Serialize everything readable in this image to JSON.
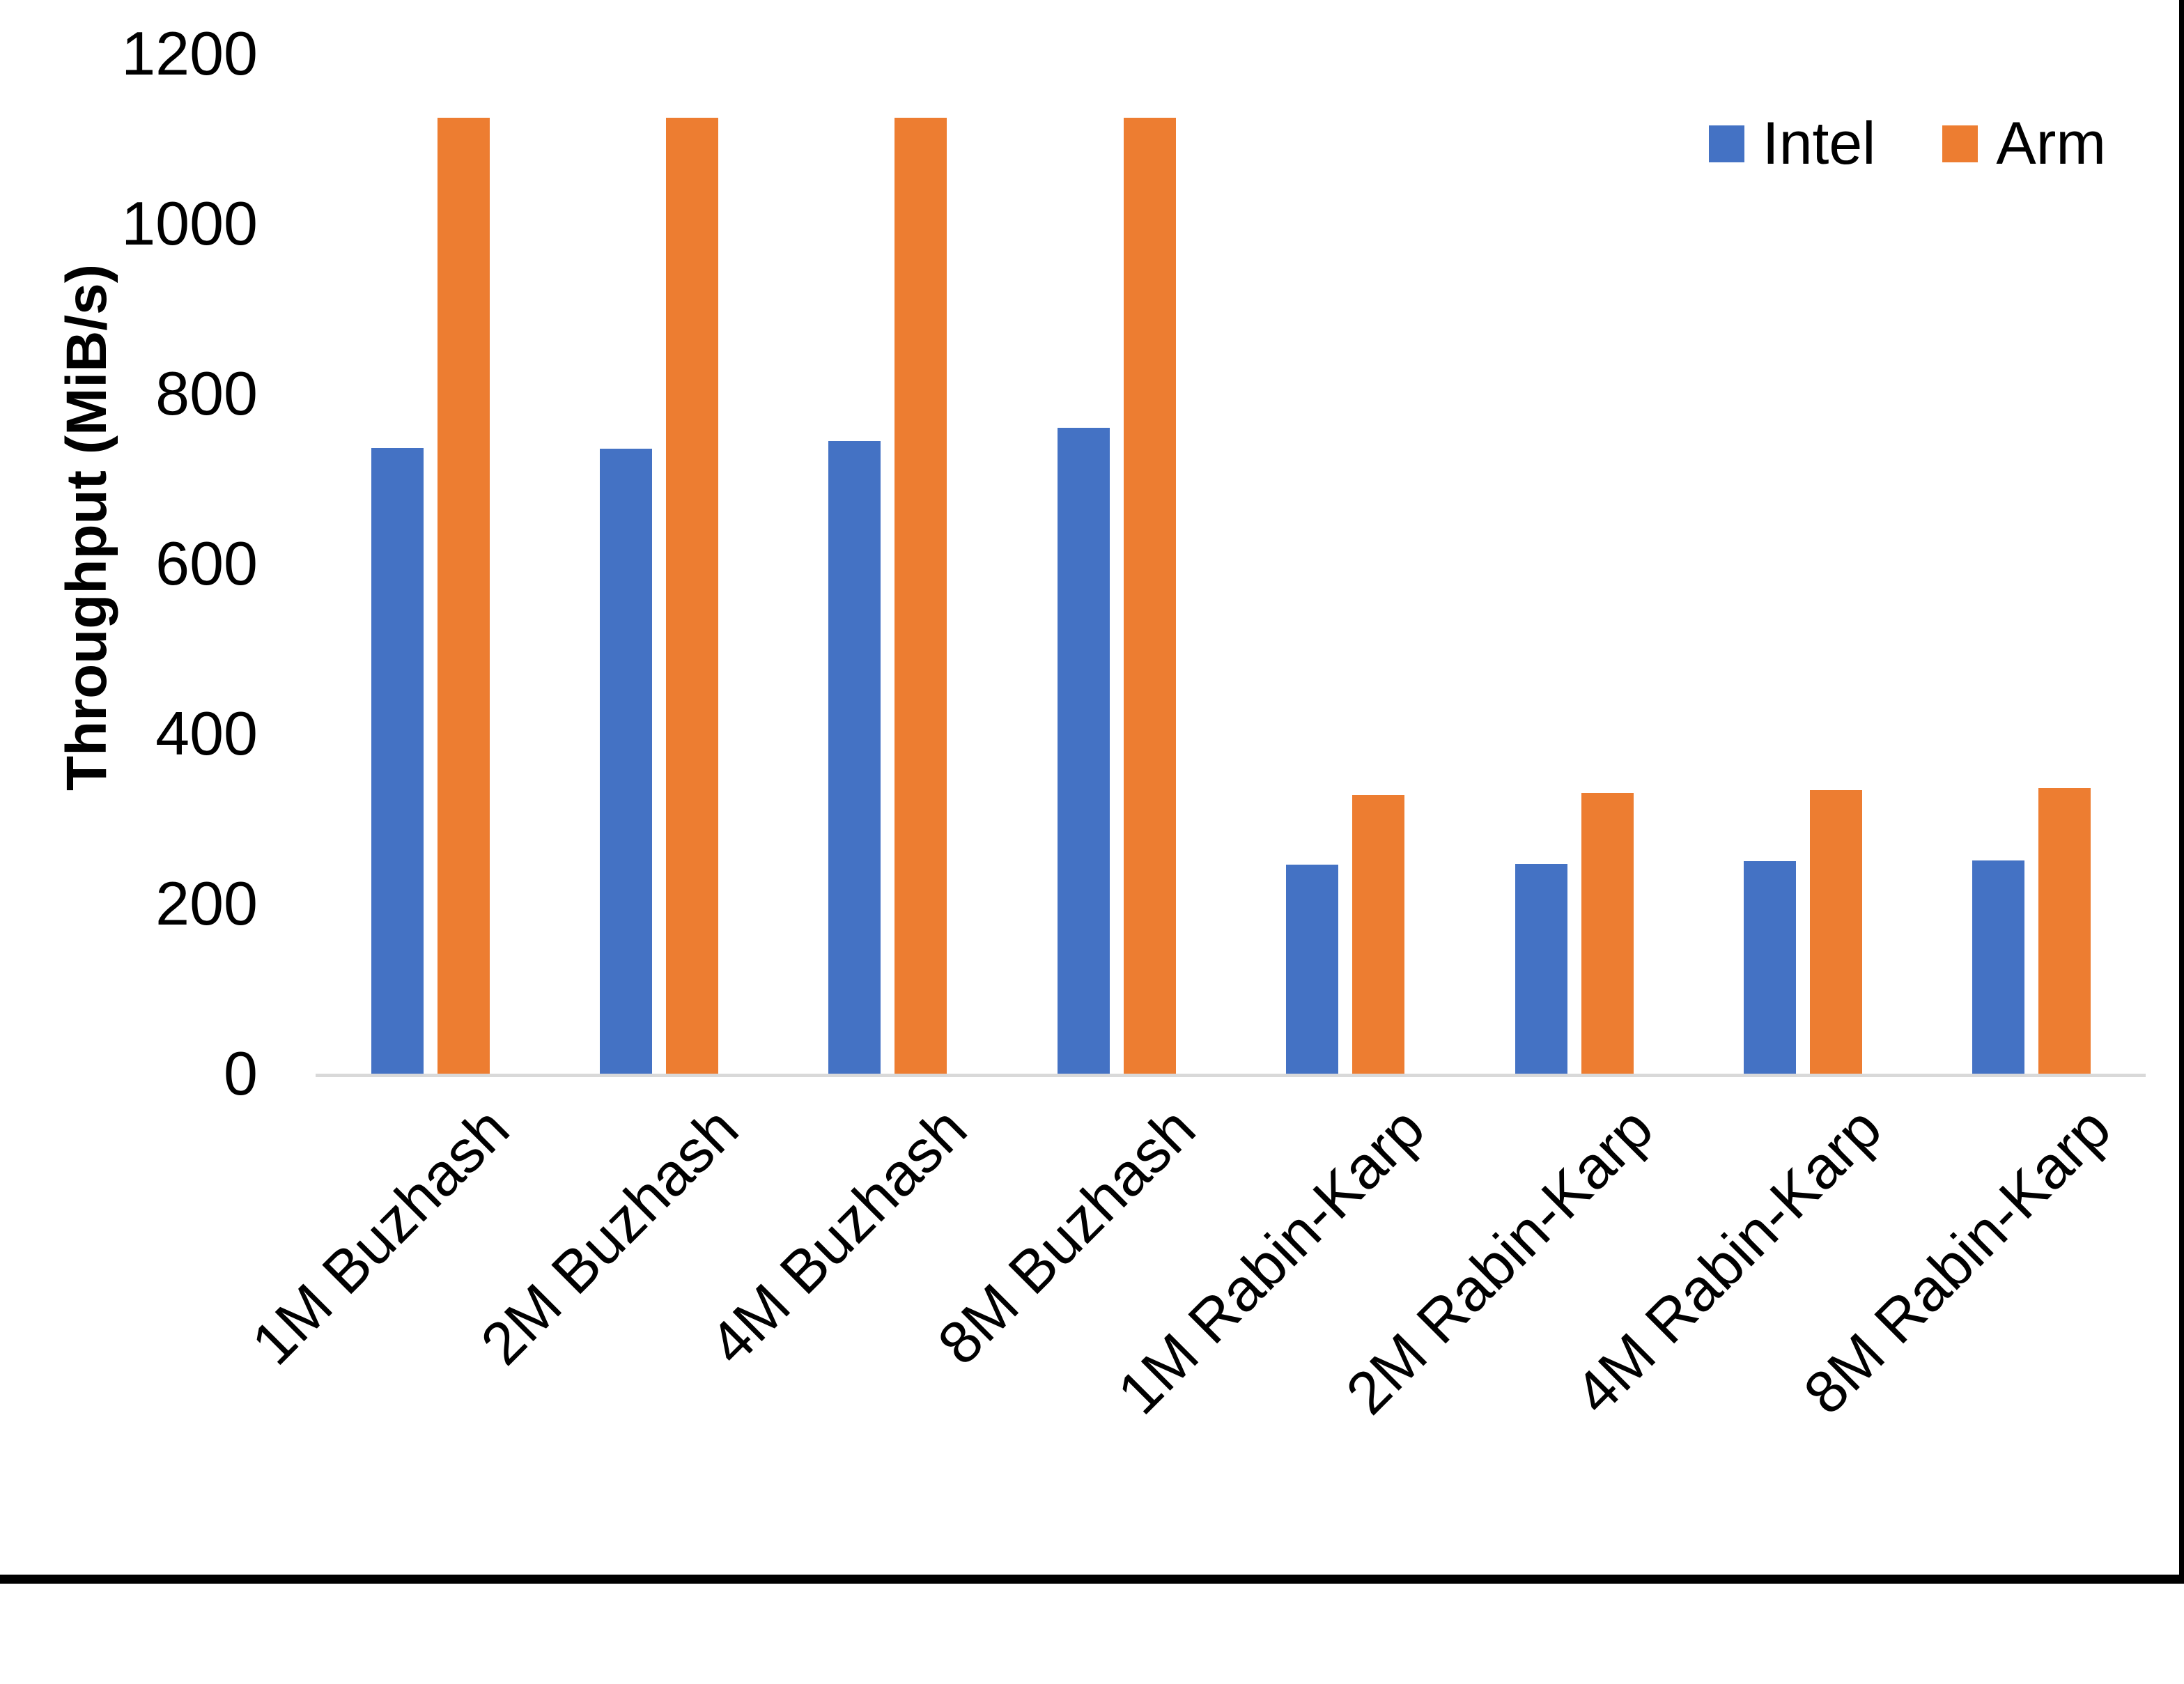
{
  "chart_data": {
    "type": "bar",
    "title": "",
    "xlabel": "",
    "ylabel": "Throughput (MiB/s)",
    "ylim": [
      0,
      1200
    ],
    "y_ticks": [
      0,
      200,
      400,
      600,
      800,
      1000,
      1200
    ],
    "grid": false,
    "legend_position": "top-right",
    "categories": [
      "1M Buzhash",
      "2M Buzhash",
      "4M Buzhash",
      "8M Buzhash",
      "1M Rabin-Karp",
      "2M Rabin-Karp",
      "4M Rabin-Karp",
      "8M Rabin-Karp"
    ],
    "series": [
      {
        "name": "Intel",
        "color": "#4472C4",
        "values": [
          736,
          735,
          744,
          760,
          246,
          247,
          250,
          251
        ]
      },
      {
        "name": "Arm",
        "color": "#ED7D31",
        "values": [
          1125,
          1125,
          1125,
          1125,
          328,
          330,
          334,
          336
        ]
      }
    ]
  },
  "colors": {
    "background": "#FFFFFF",
    "text": "#000000",
    "axis_line": "#D9D9D9",
    "frame_border": "#000000"
  }
}
